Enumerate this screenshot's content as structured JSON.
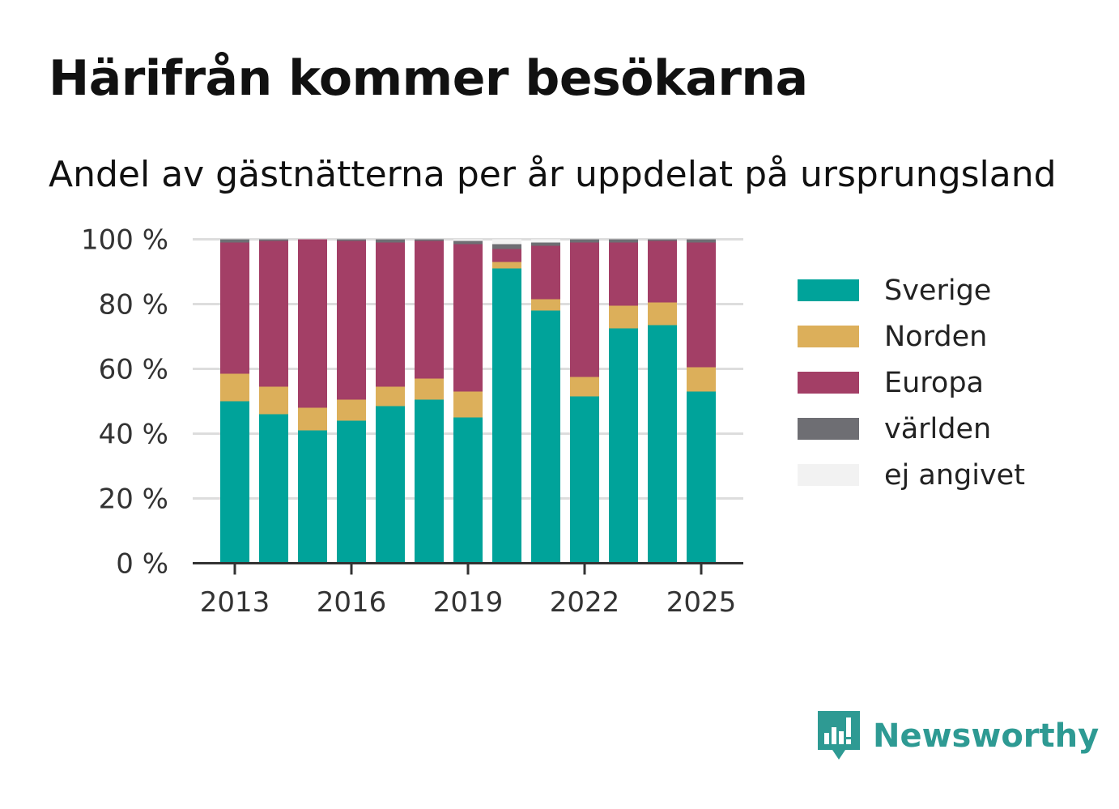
{
  "header": {
    "title": "Härifrån kommer besökarna",
    "subtitle": "Andel av gästnätterna per år uppdelat på ursprungsland"
  },
  "brand": {
    "name": "Newsworthy",
    "icon": "newsworthy-logo-icon",
    "color": "#2e9a93"
  },
  "chart_data": {
    "type": "bar",
    "stacked": true,
    "x": [
      2013,
      2014,
      2015,
      2016,
      2017,
      2018,
      2019,
      2020,
      2021,
      2022,
      2023,
      2024,
      2025
    ],
    "x_ticks": [
      "2013",
      "2016",
      "2019",
      "2022",
      "2025"
    ],
    "y_ticks": [
      "0 %",
      "20 %",
      "40 %",
      "60 %",
      "80 %",
      "100 %"
    ],
    "ylim": [
      0,
      100
    ],
    "grid": true,
    "legend_position": "right",
    "series": [
      {
        "name": "Sverige",
        "color": "#00a39a",
        "values": [
          50,
          46,
          41,
          44,
          48.5,
          50.5,
          45,
          91,
          78,
          51.5,
          72.5,
          73.5,
          53
        ]
      },
      {
        "name": "Norden",
        "color": "#dcaf5a",
        "values": [
          8.5,
          8.5,
          7,
          6.5,
          6,
          6.5,
          8,
          2,
          3.5,
          6,
          7,
          7,
          7.5
        ]
      },
      {
        "name": "Europa",
        "color": "#a33f66",
        "values": [
          40.5,
          45,
          52,
          49,
          44.5,
          42.5,
          45.5,
          4,
          16.5,
          41.5,
          19.5,
          19,
          38.5
        ]
      },
      {
        "name": "världen",
        "color": "#6e6e73",
        "values": [
          1,
          0.5,
          0,
          0.5,
          1,
          0.5,
          1,
          1.5,
          1,
          1,
          1,
          0.5,
          1
        ]
      },
      {
        "name": "ej angivet",
        "color": "#f2f2f2",
        "values": [
          0,
          0,
          0,
          0,
          0,
          0,
          0.5,
          1.5,
          1,
          0,
          0,
          0,
          0
        ]
      }
    ]
  }
}
